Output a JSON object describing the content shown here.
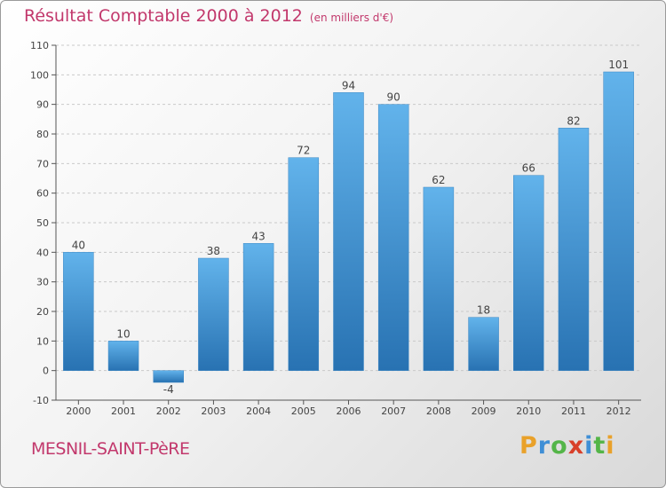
{
  "title": "Résultat Comptable 2000 à 2012",
  "subtitle": "(en milliers d'€)",
  "commune": "MESNIL-SAINT-PèRE",
  "logo": {
    "letters": [
      "P",
      "r",
      "o",
      "x",
      "i",
      "t",
      "i"
    ],
    "colors": [
      "#e9a12a",
      "#3f8fd6",
      "#54b548",
      "#d8402a",
      "#3f8fd6",
      "#54b548",
      "#e9a12a"
    ]
  },
  "colors": {
    "title": "#c2386c",
    "bar_top": "#62b3eb",
    "bar_bottom": "#2872b2",
    "axis": "#555555"
  },
  "chart_data": {
    "type": "bar",
    "title": "Résultat Comptable 2000 à 2012",
    "subtitle": "(en milliers d'€)",
    "categories": [
      "2000",
      "2001",
      "2002",
      "2003",
      "2004",
      "2005",
      "2006",
      "2007",
      "2008",
      "2009",
      "2010",
      "2011",
      "2012"
    ],
    "values": [
      40,
      10,
      -4,
      38,
      43,
      72,
      94,
      90,
      62,
      18,
      66,
      82,
      101
    ],
    "ylim": [
      -10,
      110
    ],
    "yticks": [
      -10,
      0,
      10,
      20,
      30,
      40,
      50,
      60,
      70,
      80,
      90,
      100,
      110
    ],
    "xlabel": "",
    "ylabel": ""
  }
}
